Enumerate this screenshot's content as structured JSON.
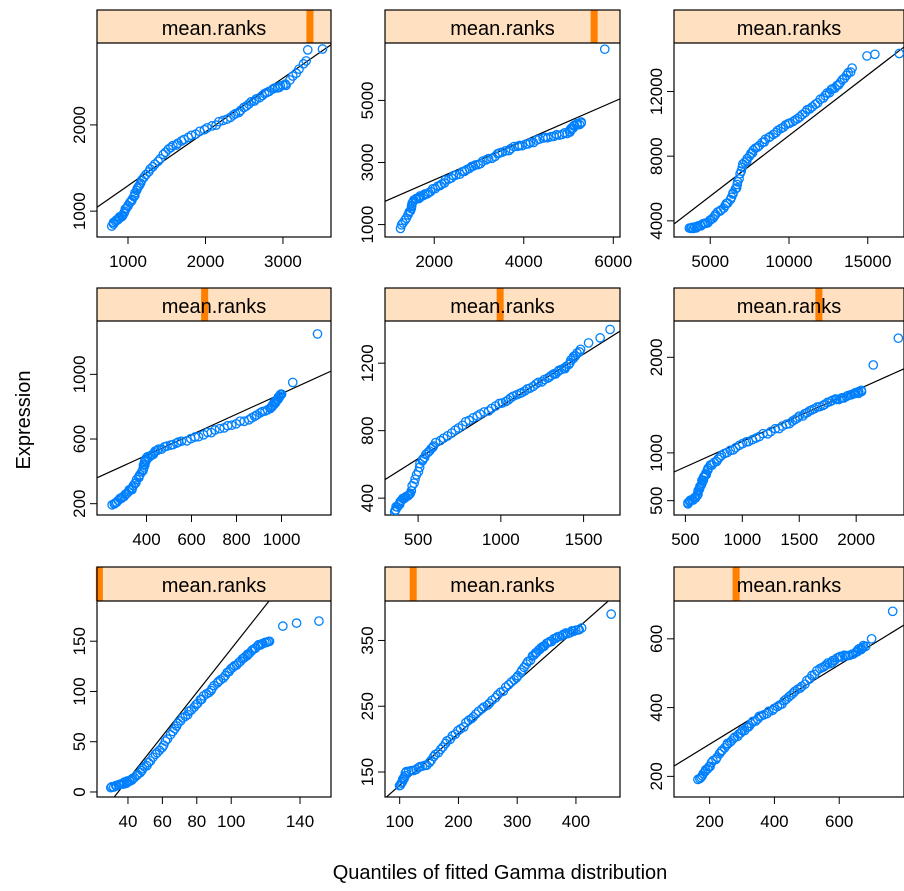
{
  "figure": {
    "ylabel": "Expression",
    "xlabel": "Quantiles of fitted Gamma distribution"
  },
  "colors": {
    "strip_bg": "#FFE0C0",
    "strip_marker": "#FF7F00",
    "points": "#0080FF",
    "line": "#000000"
  },
  "chart_data": [
    {
      "type": "scatter",
      "strip": "mean.ranks",
      "marker": 0.91,
      "xlim": [
        600,
        3620
      ],
      "ylim": [
        700,
        2950
      ],
      "xticks": [
        1000,
        2000,
        3000
      ],
      "xticklabels": [
        "1000",
        "2000",
        "3000"
      ],
      "yticks": [
        1000,
        2000
      ],
      "yticklabels": [
        "1000",
        "2000"
      ],
      "line": [
        [
          600,
          1045
        ],
        [
          3620,
          2930
        ]
      ],
      "anchors": [
        [
          790,
          830
        ],
        [
          880,
          920
        ],
        [
          940,
          960
        ],
        [
          1000,
          1070
        ],
        [
          1080,
          1180
        ],
        [
          1150,
          1320
        ],
        [
          1300,
          1500
        ],
        [
          1500,
          1700
        ],
        [
          1700,
          1830
        ],
        [
          2000,
          1950
        ],
        [
          2300,
          2080
        ],
        [
          2500,
          2200
        ],
        [
          2700,
          2330
        ],
        [
          2900,
          2430
        ],
        [
          3050,
          2470
        ],
        [
          3300,
          2750
        ]
      ],
      "outliers": [
        [
          3320,
          2870
        ],
        [
          3510,
          2880
        ]
      ],
      "n": 90,
      "x_axis_side": "bottom"
    },
    {
      "type": "scatter",
      "strip": "mean.ranks",
      "marker": 0.89,
      "xlim": [
        900,
        6150
      ],
      "ylim": [
        600,
        6850
      ],
      "xticks": [
        2000,
        4000,
        6000
      ],
      "xticklabels": [
        "2000",
        "4000",
        "6000"
      ],
      "yticks": [
        1000,
        3000,
        5000
      ],
      "yticklabels": [
        "1000",
        "3000",
        "5000"
      ],
      "line": [
        [
          900,
          1750
        ],
        [
          6150,
          5050
        ]
      ],
      "anchors": [
        [
          1250,
          900
        ],
        [
          1450,
          1400
        ],
        [
          1550,
          1800
        ],
        [
          1700,
          1900
        ],
        [
          2000,
          2150
        ],
        [
          2300,
          2450
        ],
        [
          2700,
          2750
        ],
        [
          3000,
          2950
        ],
        [
          3400,
          3250
        ],
        [
          3800,
          3500
        ],
        [
          4200,
          3650
        ],
        [
          4600,
          3850
        ],
        [
          5000,
          3950
        ],
        [
          5100,
          4150
        ],
        [
          5300,
          4300
        ]
      ],
      "outliers": [
        [
          5810,
          6650
        ]
      ],
      "n": 90,
      "x_axis_side": "bottom"
    },
    {
      "type": "scatter",
      "strip": "mean.ranks",
      "marker": null,
      "xlim": [
        2700,
        17300
      ],
      "ylim": [
        3000,
        15000
      ],
      "xticks": [
        5000,
        10000,
        15000
      ],
      "xticklabels": [
        "5000",
        "10000",
        "15000"
      ],
      "yticks": [
        4000,
        8000,
        12000
      ],
      "yticklabels": [
        "4000",
        "8000",
        "12000"
      ],
      "line": [
        [
          2700,
          3800
        ],
        [
          17300,
          14750
        ]
      ],
      "anchors": [
        [
          3700,
          3500
        ],
        [
          4200,
          3600
        ],
        [
          4800,
          3900
        ],
        [
          5500,
          4500
        ],
        [
          6200,
          5200
        ],
        [
          6700,
          6200
        ],
        [
          7100,
          7500
        ],
        [
          7700,
          8300
        ],
        [
          8500,
          9000
        ],
        [
          9500,
          9700
        ],
        [
          10500,
          10300
        ],
        [
          11500,
          11100
        ],
        [
          12500,
          11900
        ],
        [
          13200,
          12500
        ],
        [
          14000,
          13400
        ]
      ],
      "outliers": [
        [
          14950,
          14200
        ],
        [
          15450,
          14300
        ],
        [
          17000,
          14350
        ]
      ],
      "n": 90,
      "x_axis_side": "bottom"
    },
    {
      "type": "scatter",
      "strip": "mean.ranks",
      "marker": 0.46,
      "xlim": [
        180,
        1220
      ],
      "ylim": [
        130,
        1330
      ],
      "xticks": [
        400,
        600,
        800,
        1000
      ],
      "xticklabels": [
        "400",
        "600",
        "800",
        "1000"
      ],
      "yticks": [
        200,
        600,
        1000
      ],
      "yticklabels": [
        "200",
        "600",
        "1000"
      ],
      "line": [
        [
          180,
          360
        ],
        [
          1220,
          1020
        ]
      ],
      "anchors": [
        [
          250,
          190
        ],
        [
          300,
          250
        ],
        [
          340,
          300
        ],
        [
          380,
          400
        ],
        [
          400,
          480
        ],
        [
          450,
          530
        ],
        [
          550,
          580
        ],
        [
          700,
          650
        ],
        [
          850,
          720
        ],
        [
          950,
          790
        ],
        [
          980,
          840
        ],
        [
          1000,
          880
        ]
      ],
      "outliers": [
        [
          1050,
          950
        ],
        [
          1160,
          1250
        ]
      ],
      "n": 90,
      "x_axis_side": "bottom"
    },
    {
      "type": "scatter",
      "strip": "mean.ranks",
      "marker": 0.49,
      "xlim": [
        300,
        1720
      ],
      "ylim": [
        300,
        1450
      ],
      "xticks": [
        500,
        1000,
        1500
      ],
      "xticklabels": [
        "500",
        "1000",
        "1500"
      ],
      "yticks": [
        400,
        800,
        1200
      ],
      "yticklabels": [
        "400",
        "800",
        "1200"
      ],
      "line": [
        [
          300,
          510
        ],
        [
          1720,
          1390
        ]
      ],
      "anchors": [
        [
          355,
          320
        ],
        [
          400,
          390
        ],
        [
          450,
          420
        ],
        [
          520,
          620
        ],
        [
          600,
          720
        ],
        [
          800,
          860
        ],
        [
          1000,
          960
        ],
        [
          1150,
          1040
        ],
        [
          1300,
          1120
        ],
        [
          1400,
          1180
        ],
        [
          1480,
          1280
        ]
      ],
      "outliers": [
        [
          1530,
          1320
        ],
        [
          1600,
          1350
        ],
        [
          1660,
          1400
        ]
      ],
      "n": 90,
      "x_axis_side": "bottom"
    },
    {
      "type": "scatter",
      "strip": "mean.ranks",
      "marker": 0.63,
      "xlim": [
        400,
        2420
      ],
      "ylim": [
        350,
        2380
      ],
      "xticks": [
        500,
        1000,
        1500,
        2000
      ],
      "xticklabels": [
        "500",
        "1000",
        "1500",
        "2000"
      ],
      "yticks": [
        500,
        1000,
        2000
      ],
      "yticklabels": [
        "500",
        "1000",
        "2000"
      ],
      "line": [
        [
          400,
          800
        ],
        [
          2420,
          1880
        ]
      ],
      "anchors": [
        [
          520,
          470
        ],
        [
          600,
          550
        ],
        [
          650,
          700
        ],
        [
          700,
          840
        ],
        [
          850,
          1000
        ],
        [
          1100,
          1150
        ],
        [
          1400,
          1300
        ],
        [
          1600,
          1450
        ],
        [
          1800,
          1550
        ],
        [
          1950,
          1600
        ],
        [
          2050,
          1650
        ]
      ],
      "outliers": [
        [
          2150,
          1920
        ],
        [
          2370,
          2200
        ]
      ],
      "n": 90,
      "x_axis_side": "bottom"
    },
    {
      "type": "scatter",
      "strip": "mean.ranks",
      "marker": 0.01,
      "xlim": [
        22,
        158
      ],
      "ylim": [
        -5,
        190
      ],
      "xticks": [
        40,
        60,
        80,
        100,
        140
      ],
      "xticklabels": [
        "40",
        "60",
        "80",
        "100",
        "140"
      ],
      "yticks": [
        0,
        50,
        100,
        150
      ],
      "yticklabels": [
        "0",
        "50",
        "100",
        "150"
      ],
      "line": [
        [
          32,
          -5
        ],
        [
          122,
          190
        ]
      ],
      "anchors": [
        [
          30,
          5
        ],
        [
          37,
          8
        ],
        [
          42,
          12
        ],
        [
          50,
          25
        ],
        [
          60,
          45
        ],
        [
          70,
          70
        ],
        [
          80,
          88
        ],
        [
          90,
          105
        ],
        [
          100,
          122
        ],
        [
          108,
          135
        ],
        [
          115,
          145
        ],
        [
          122,
          150
        ]
      ],
      "outliers": [
        [
          130,
          165
        ],
        [
          138,
          168
        ],
        [
          151,
          170
        ]
      ],
      "n": 90,
      "x_axis_side": "bottom"
    },
    {
      "type": "scatter",
      "strip": "mean.ranks",
      "marker": 0.12,
      "xlim": [
        75,
        475
      ],
      "ylim": [
        112,
        410
      ],
      "xticks": [
        100,
        200,
        300,
        400
      ],
      "xticklabels": [
        "100",
        "200",
        "300",
        "400"
      ],
      "yticks": [
        150,
        250,
        350
      ],
      "yticklabels": [
        "150",
        "250",
        "350"
      ],
      "line": [
        [
          75,
          110
        ],
        [
          455,
          410
        ]
      ],
      "anchors": [
        [
          100,
          128
        ],
        [
          112,
          150
        ],
        [
          145,
          160
        ],
        [
          180,
          195
        ],
        [
          220,
          230
        ],
        [
          260,
          260
        ],
        [
          300,
          295
        ],
        [
          330,
          330
        ],
        [
          350,
          345
        ],
        [
          380,
          360
        ],
        [
          410,
          368
        ]
      ],
      "outliers": [
        [
          460,
          390
        ]
      ],
      "n": 90,
      "x_axis_side": "bottom"
    },
    {
      "type": "scatter",
      "strip": "mean.ranks",
      "marker": 0.27,
      "xlim": [
        90,
        800
      ],
      "ylim": [
        140,
        710
      ],
      "xticks": [
        200,
        400,
        600
      ],
      "xticklabels": [
        "200",
        "400",
        "600"
      ],
      "yticks": [
        200,
        400,
        600
      ],
      "yticklabels": [
        "200",
        "400",
        "600"
      ],
      "line": [
        [
          90,
          230
        ],
        [
          800,
          640
        ]
      ],
      "anchors": [
        [
          165,
          190
        ],
        [
          200,
          230
        ],
        [
          250,
          290
        ],
        [
          300,
          330
        ],
        [
          350,
          370
        ],
        [
          420,
          410
        ],
        [
          480,
          460
        ],
        [
          550,
          520
        ],
        [
          600,
          545
        ],
        [
          650,
          560
        ],
        [
          680,
          580
        ]
      ],
      "outliers": [
        [
          700,
          600
        ],
        [
          765,
          680
        ]
      ],
      "n": 90,
      "x_axis_side": "bottom"
    }
  ]
}
